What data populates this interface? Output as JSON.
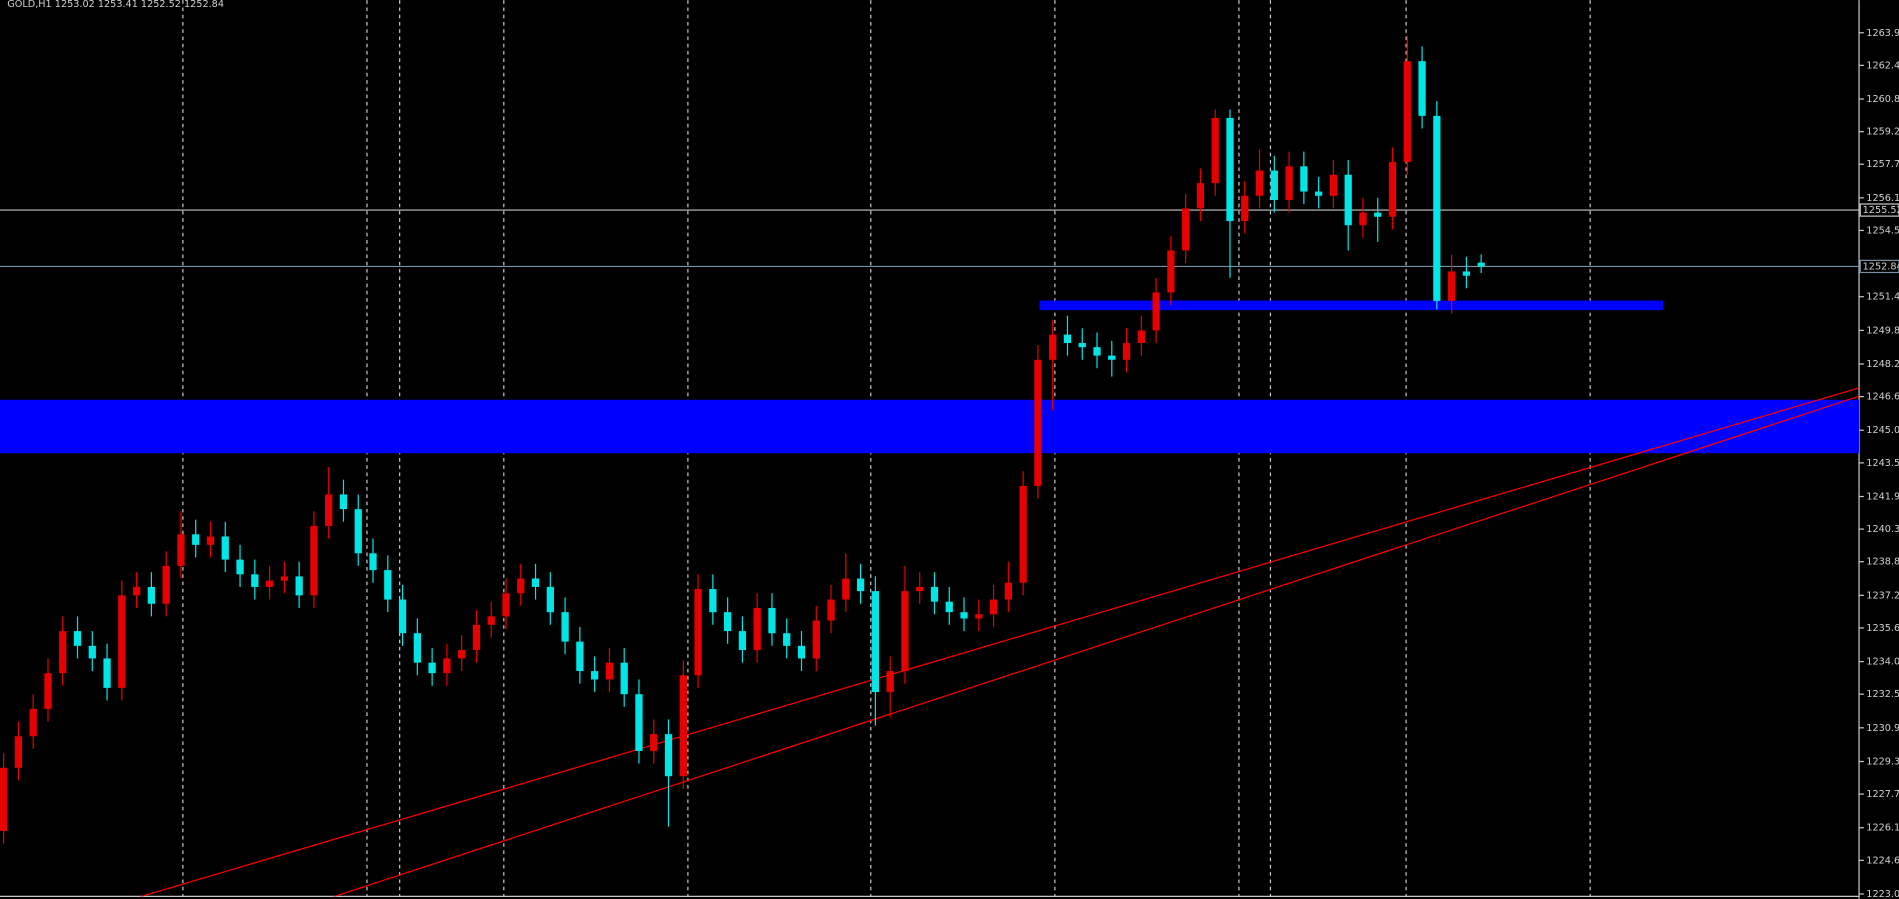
{
  "chart_data": {
    "type": "candlestick",
    "title": "GOLD,H1  1253.02 1253.41 1252.52 1252.84",
    "up_color": "#e60000",
    "down_color": "#00e5e5",
    "ylim": [
      1222.77,
      1265.5
    ],
    "yticks": [
      1263.95,
      {
        "value": 1262.4,
        "label": "1262.40"
      },
      {
        "value": 1260.8,
        "label": "1260.80"
      },
      1259.25,
      {
        "value": 1257.7,
        "label": "1257.70"
      },
      {
        "value": 1256.1,
        "label": "1256.10"
      },
      1254.55,
      {
        "value": 1251.4,
        "label": "1251.40"
      },
      {
        "value": 1249.8,
        "label": "1249.80"
      },
      {
        "value": 1248.2,
        "label": "1248.20"
      },
      1246.65,
      1245.05,
      {
        "value": 1243.5,
        "label": "1243.50"
      },
      {
        "value": 1241.9,
        "label": "1241.90"
      },
      1240.35,
      {
        "value": 1238.8,
        "label": "1238.80"
      },
      {
        "value": 1237.2,
        "label": "1237.20"
      },
      1235.65,
      1234.05,
      {
        "value": 1232.5,
        "label": "1232.50"
      },
      {
        "value": 1230.9,
        "label": "1230.90"
      },
      {
        "value": 1229.3,
        "label": "1229.30"
      },
      1227.75,
      1226.15,
      {
        "value": 1224.6,
        "label": "1224.60"
      },
      {
        "value": 1223.0,
        "label": "1223.00"
      }
    ],
    "open": [
      1226.0,
      1229.0,
      1230.5,
      1231.8,
      1233.5,
      1235.5,
      1234.8,
      1234.2,
      1232.8,
      1237.2,
      1237.6,
      1236.8,
      1238.6,
      1240.1,
      1239.6,
      1240.0,
      1238.9,
      1238.2,
      1237.6,
      1237.9,
      1238.1,
      1237.2,
      1240.5,
      1242.0,
      1241.3,
      1239.2,
      1238.4,
      1237.0,
      1235.4,
      1234.0,
      1233.5,
      1234.2,
      1234.6,
      1235.8,
      1236.2,
      1237.3,
      1238.0,
      1237.6,
      1236.4,
      1235.0,
      1233.6,
      1233.2,
      1234.0,
      1232.5,
      1229.8,
      1230.6,
      1228.6,
      1233.4,
      1237.5,
      1236.4,
      1235.5,
      1234.6,
      1236.6,
      1235.4,
      1234.8,
      1234.2,
      1236.0,
      1237.0,
      1238.0,
      1237.4,
      1232.6,
      1233.6,
      1237.4,
      1237.6,
      1236.9,
      1236.4,
      1236.1,
      1236.3,
      1237.0,
      1237.8,
      1242.4,
      1248.4,
      1249.6,
      1249.2,
      1249.0,
      1248.6,
      1248.4,
      1249.2,
      1249.8,
      1251.6,
      1253.6,
      1255.6,
      1256.8,
      1259.9,
      1255.0,
      1256.2,
      1257.4,
      1256.0,
      1257.6,
      1256.4,
      1256.2,
      1257.2,
      1254.8,
      1255.4,
      1255.2,
      1257.8,
      1262.6,
      1260.0,
      1251.2,
      1252.6,
      1253.02
    ],
    "high": [
      1229.7,
      1231.2,
      1232.5,
      1234.2,
      1236.2,
      1236.2,
      1235.5,
      1234.9,
      1237.9,
      1238.3,
      1238.3,
      1239.3,
      1241.2,
      1240.8,
      1240.7,
      1240.7,
      1239.6,
      1238.9,
      1238.6,
      1238.8,
      1238.8,
      1241.2,
      1243.3,
      1242.7,
      1242.0,
      1239.9,
      1239.1,
      1237.7,
      1236.1,
      1234.7,
      1234.9,
      1235.3,
      1236.5,
      1236.9,
      1238.0,
      1238.7,
      1238.7,
      1238.3,
      1237.1,
      1235.7,
      1234.3,
      1234.7,
      1234.7,
      1233.2,
      1231.3,
      1231.3,
      1234.1,
      1238.2,
      1238.2,
      1237.1,
      1236.2,
      1237.3,
      1237.3,
      1236.1,
      1235.5,
      1236.7,
      1237.7,
      1239.2,
      1238.7,
      1238.1,
      1234.3,
      1238.6,
      1238.3,
      1238.3,
      1237.6,
      1237.1,
      1237.0,
      1237.7,
      1238.8,
      1243.1,
      1249.1,
      1250.3,
      1250.5,
      1249.9,
      1249.7,
      1249.3,
      1249.9,
      1250.5,
      1252.3,
      1254.3,
      1256.3,
      1257.5,
      1260.3,
      1260.3,
      1256.9,
      1258.4,
      1258.1,
      1258.3,
      1258.3,
      1257.1,
      1257.9,
      1257.9,
      1256.1,
      1256.1,
      1258.5,
      1263.8,
      1263.3,
      1260.7,
      1253.4,
      1253.3,
      1253.41
    ],
    "low": [
      1225.4,
      1228.4,
      1229.9,
      1231.2,
      1232.9,
      1234.2,
      1233.6,
      1232.2,
      1232.2,
      1236.6,
      1236.2,
      1236.2,
      1238.0,
      1239.0,
      1239.0,
      1238.3,
      1237.6,
      1237.0,
      1237.0,
      1237.3,
      1236.6,
      1236.6,
      1239.9,
      1240.7,
      1238.6,
      1237.8,
      1236.4,
      1234.8,
      1233.4,
      1232.9,
      1232.9,
      1233.6,
      1234.0,
      1235.2,
      1235.6,
      1236.7,
      1237.0,
      1235.8,
      1234.4,
      1233.0,
      1232.6,
      1232.6,
      1231.9,
      1229.2,
      1229.2,
      1226.2,
      1228.0,
      1232.8,
      1235.8,
      1234.9,
      1234.0,
      1234.0,
      1234.8,
      1234.2,
      1233.6,
      1233.6,
      1235.4,
      1236.4,
      1236.8,
      1231.0,
      1231.4,
      1233.0,
      1236.8,
      1236.3,
      1235.8,
      1235.5,
      1235.5,
      1235.7,
      1236.4,
      1237.2,
      1241.8,
      1246.0,
      1248.6,
      1248.4,
      1248.0,
      1247.6,
      1247.8,
      1248.6,
      1249.2,
      1251.0,
      1253.0,
      1255.0,
      1256.2,
      1252.3,
      1254.4,
      1255.6,
      1255.4,
      1255.4,
      1255.8,
      1255.6,
      1255.6,
      1253.6,
      1254.2,
      1254.0,
      1254.6,
      1257.2,
      1259.4,
      1250.8,
      1250.6,
      1251.8,
      1252.52
    ],
    "close": [
      1229.0,
      1230.5,
      1231.8,
      1233.5,
      1235.5,
      1234.8,
      1234.2,
      1232.8,
      1237.2,
      1237.6,
      1236.8,
      1238.6,
      1240.1,
      1239.6,
      1240.0,
      1238.9,
      1238.2,
      1237.6,
      1237.9,
      1238.1,
      1237.2,
      1240.5,
      1242.0,
      1241.3,
      1239.2,
      1238.4,
      1237.0,
      1235.4,
      1234.0,
      1233.5,
      1234.2,
      1234.6,
      1235.8,
      1236.2,
      1237.3,
      1238.0,
      1237.6,
      1236.4,
      1235.0,
      1233.6,
      1233.2,
      1234.0,
      1232.5,
      1229.8,
      1230.6,
      1228.6,
      1233.4,
      1237.5,
      1236.4,
      1235.5,
      1234.6,
      1236.6,
      1235.4,
      1234.8,
      1234.2,
      1236.0,
      1237.0,
      1238.0,
      1237.4,
      1232.6,
      1233.6,
      1237.4,
      1237.6,
      1236.9,
      1236.4,
      1236.1,
      1236.3,
      1237.0,
      1237.8,
      1242.4,
      1248.4,
      1249.6,
      1249.2,
      1249.0,
      1248.6,
      1248.4,
      1249.2,
      1249.8,
      1251.6,
      1253.6,
      1255.6,
      1256.8,
      1259.9,
      1255.0,
      1256.2,
      1257.4,
      1256.0,
      1257.6,
      1256.4,
      1256.2,
      1257.2,
      1254.8,
      1255.4,
      1255.2,
      1257.8,
      1262.6,
      1260.0,
      1251.2,
      1252.6,
      1252.4,
      1252.84
    ],
    "hlines": [
      {
        "value": 1255.52,
        "color": "#c8c8c8"
      },
      {
        "value": 1252.84,
        "color": "#7890a8"
      }
    ],
    "zones": [
      {
        "from": 1243.96,
        "to": 1246.5,
        "color": "#0000ff"
      },
      {
        "from": 1250.76,
        "to": 1251.22,
        "start": 70.1,
        "end": 112.3,
        "color": "#0000ff"
      }
    ],
    "trendlines": [
      {
        "from": [
          8.77,
          1222.77
        ],
        "to": [
          125.6,
          1247.07
        ],
        "color": "#ff0000"
      },
      {
        "from": [
          21.9,
          1222.77
        ],
        "to": [
          125.6,
          1246.67
        ],
        "color": "#ff0000"
      }
    ]
  }
}
